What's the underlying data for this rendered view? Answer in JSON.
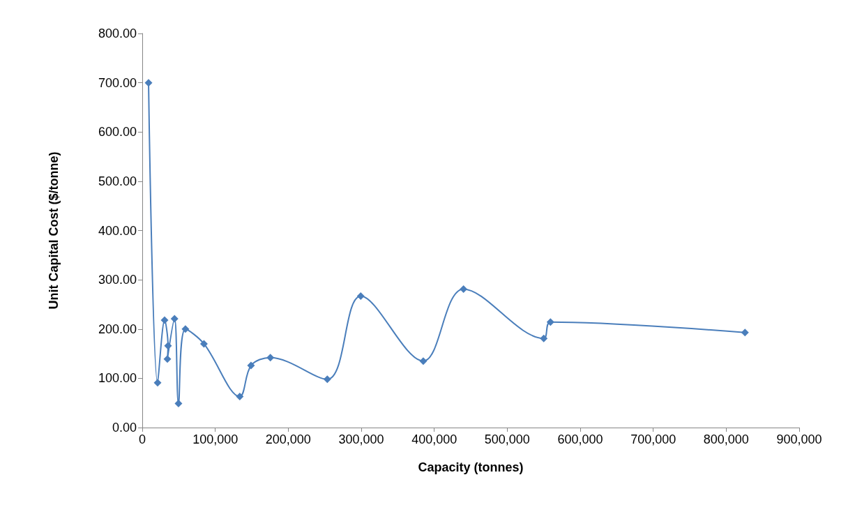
{
  "chart_data": {
    "type": "line",
    "xlabel": "Capacity (tonnes)",
    "ylabel": "Unit Capital Cost ($/tonne)",
    "series": [
      {
        "color": "#4a7ebb",
        "x": [
          8600,
          21000,
          30600,
          35300,
          34400,
          44200,
          49600,
          59100,
          84500,
          133600,
          149000,
          175500,
          253500,
          299300,
          385000,
          440100,
          550000,
          559200,
          825700
        ],
        "values": [
          700,
          91,
          218,
          166,
          139,
          221,
          49,
          200,
          170,
          63,
          126,
          142,
          98,
          267,
          135,
          281,
          181,
          214,
          193
        ]
      }
    ],
    "xlim": [
      0,
      900000
    ],
    "xticks": [
      {
        "value": 0,
        "label": "0"
      },
      {
        "value": 100000,
        "label": "100,000"
      },
      {
        "value": 200000,
        "label": "200,000"
      },
      {
        "value": 300000,
        "label": "300,000"
      },
      {
        "value": 400000,
        "label": "400,000"
      },
      {
        "value": 500000,
        "label": "500,000"
      },
      {
        "value": 600000,
        "label": "600,000"
      },
      {
        "value": 700000,
        "label": "700,000"
      },
      {
        "value": 800000,
        "label": "800,000"
      },
      {
        "value": 900000,
        "label": "900,000"
      }
    ],
    "ylim": [
      0,
      800
    ],
    "yticks": [
      {
        "value": 0,
        "label": "0.00"
      },
      {
        "value": 100,
        "label": "100.00"
      },
      {
        "value": 200,
        "label": "200.00"
      },
      {
        "value": 300,
        "label": "300.00"
      },
      {
        "value": 400,
        "label": "400.00"
      },
      {
        "value": 500,
        "label": "500.00"
      },
      {
        "value": 600,
        "label": "600.00"
      },
      {
        "value": 700,
        "label": "700.00"
      },
      {
        "value": 800,
        "label": "800.00"
      }
    ],
    "grid": false,
    "marker": "diamond",
    "line_style": "solid"
  }
}
